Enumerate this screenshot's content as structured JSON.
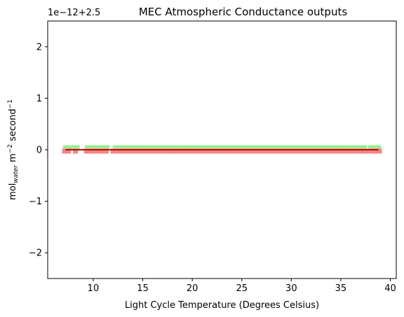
{
  "chart_data": {
    "type": "scatter",
    "title": "MEC Atmospheric Conductance outputs",
    "xlabel": "Light Cycle Temperature (Degrees Celsius)",
    "ylabel": {
      "base": "mol",
      "subscript": "water",
      "middle": " m",
      "sup1": "−2",
      "tail": " second",
      "sup2": "−1"
    },
    "offset_label": "1e−12+2.5",
    "xlim": [
      5.4,
      40.6
    ],
    "ylim": [
      -2.5,
      2.5
    ],
    "x_ticks": [
      10,
      15,
      20,
      25,
      30,
      35,
      40
    ],
    "x_tick_labels": [
      "10",
      "15",
      "20",
      "25",
      "30",
      "35",
      "40"
    ],
    "y_ticks": [
      2,
      1,
      0,
      -1,
      -2
    ],
    "y_tick_labels": [
      "2",
      "1",
      "0",
      "−1",
      "−2"
    ],
    "grid": false,
    "legend": "none",
    "colors": {
      "green": "#90ee90",
      "red": "#f08080",
      "line": "#cc0000"
    },
    "series": [
      {
        "color": "green",
        "marker": "square",
        "x": [
          7.2,
          7.6,
          8.0,
          8.4,
          9.4,
          9.8,
          10.2,
          10.6,
          11.0,
          11.4,
          12.2,
          12.6,
          13.0,
          13.4,
          13.8,
          14.2,
          14.6,
          15.0,
          15.4,
          15.8,
          16.2,
          16.6,
          17.0,
          17.4,
          17.8,
          18.2,
          18.6,
          19.0,
          19.4,
          19.8,
          20.2,
          20.6,
          21.0,
          21.4,
          21.8,
          22.2,
          22.6,
          23.0,
          23.4,
          23.8,
          24.2,
          24.6,
          25.0,
          25.4,
          25.8,
          26.2,
          26.6,
          27.0,
          27.4,
          27.8,
          28.2,
          28.6,
          29.0,
          29.4,
          29.8,
          30.2,
          30.6,
          31.0,
          31.4,
          31.8,
          32.2,
          32.6,
          33.0,
          33.4,
          33.8,
          34.2,
          34.6,
          35.0,
          35.4,
          35.8,
          36.2,
          36.6,
          37.0,
          37.4,
          38.0,
          38.4,
          38.8
        ],
        "y": 0
      },
      {
        "color": "red",
        "marker": "square",
        "x": [
          7.1,
          7.5,
          8.2,
          9.3,
          9.7,
          10.1,
          10.5,
          10.9,
          11.3,
          12.0,
          12.4,
          12.8,
          13.2,
          13.7,
          14.1,
          14.5,
          14.9,
          15.3,
          15.7,
          16.1,
          16.5,
          16.9,
          17.3,
          17.7,
          18.1,
          18.5,
          18.9,
          19.3,
          19.7,
          20.1,
          20.5,
          20.9,
          21.3,
          21.7,
          22.1,
          22.5,
          22.9,
          23.3,
          23.7,
          24.1,
          24.5,
          24.9,
          25.3,
          25.7,
          26.1,
          26.5,
          26.9,
          27.3,
          27.7,
          28.1,
          28.5,
          28.9,
          29.3,
          29.7,
          30.1,
          30.5,
          30.9,
          31.3,
          31.7,
          32.1,
          32.5,
          32.9,
          33.3,
          33.7,
          34.1,
          34.5,
          34.9,
          35.3,
          35.7,
          36.1,
          36.5,
          36.9,
          37.3,
          37.6,
          38.1,
          38.5,
          38.9
        ],
        "y": 0
      },
      {
        "color": "line",
        "marker": "line",
        "x": [
          7.2,
          38.8
        ],
        "y": 0
      }
    ]
  }
}
